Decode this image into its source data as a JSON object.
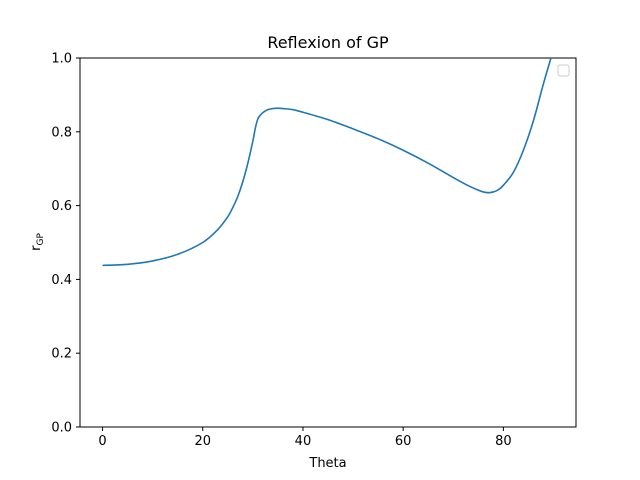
{
  "chart_data": {
    "type": "line",
    "title": "Reflexion of GP",
    "xlabel": "Theta",
    "ylabel_main": "r",
    "ylabel_sub": "GP",
    "xlim": [
      -4.5,
      94.5
    ],
    "ylim": [
      0.0,
      1.0
    ],
    "xticks": [
      0,
      20,
      40,
      60,
      80
    ],
    "yticks": [
      0.0,
      0.2,
      0.4,
      0.6,
      0.8,
      1.0
    ],
    "ytick_labels": [
      "0.0",
      "0.2",
      "0.4",
      "0.6",
      "0.8",
      "1.0"
    ],
    "grid": false,
    "legend": {
      "placement": "top-right",
      "entries": []
    },
    "line_color": "#1f77b4",
    "series": [
      {
        "x": [
          0,
          5,
          10,
          15,
          20,
          23,
          25,
          26,
          27,
          28,
          29,
          30,
          30.5,
          31,
          31.5,
          32,
          33,
          34,
          35,
          36,
          38,
          40,
          45,
          50,
          55,
          60,
          65,
          70,
          73,
          75,
          76,
          77,
          78,
          79,
          80,
          82,
          84,
          86,
          88,
          89.5
        ],
        "y": [
          0.438,
          0.441,
          0.45,
          0.468,
          0.5,
          0.535,
          0.57,
          0.595,
          0.625,
          0.665,
          0.715,
          0.775,
          0.81,
          0.835,
          0.845,
          0.852,
          0.86,
          0.863,
          0.864,
          0.863,
          0.86,
          0.853,
          0.833,
          0.808,
          0.781,
          0.75,
          0.715,
          0.676,
          0.654,
          0.642,
          0.637,
          0.635,
          0.637,
          0.643,
          0.655,
          0.69,
          0.75,
          0.83,
          0.93,
          1.0
        ]
      }
    ]
  }
}
